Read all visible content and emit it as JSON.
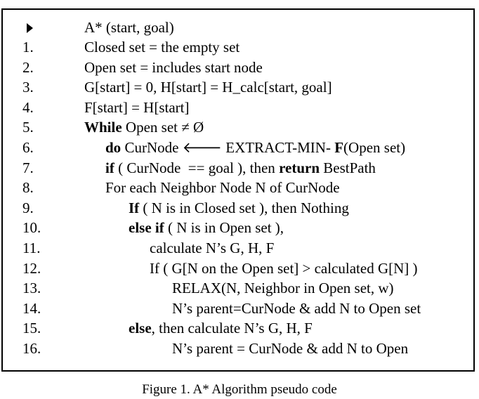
{
  "algorithm": {
    "header": "A* (start, goal)",
    "lines": [
      {
        "num": "1.",
        "parts": [
          {
            "text": "Closed set = the empty set"
          }
        ]
      },
      {
        "num": "2.",
        "parts": [
          {
            "text": "Open set = includes start node"
          }
        ]
      },
      {
        "num": "3.",
        "parts": [
          {
            "text": "G[start] = 0, H[start] = H_calc[start, goal]"
          }
        ]
      },
      {
        "num": "4.",
        "parts": [
          {
            "text": "F[start] = H[start]"
          }
        ]
      },
      {
        "num": "5.",
        "parts": [
          {
            "text": "While",
            "bold": true
          },
          {
            "text": " Open set ≠ Ø"
          }
        ]
      },
      {
        "num": "6.",
        "parts": [
          {
            "text": "do",
            "bold": true
          },
          {
            "text": " CurNode 🡐 EXTRACT-MIN- "
          },
          {
            "text": "F",
            "bold": true
          },
          {
            "text": "(Open set)"
          }
        ]
      },
      {
        "num": "7.",
        "parts": [
          {
            "text": "if",
            "bold": true
          },
          {
            "text": " ( CurNode  == goal ), then "
          },
          {
            "text": "return",
            "bold": true
          },
          {
            "text": " BestPath"
          }
        ]
      },
      {
        "num": "8.",
        "parts": [
          {
            "text": "For each Neighbor Node N of CurNode"
          }
        ]
      },
      {
        "num": "9.",
        "parts": [
          {
            "text": "If",
            "bold": true
          },
          {
            "text": " ( N is in Closed set ), then Nothing"
          }
        ]
      },
      {
        "num": "10.",
        "parts": [
          {
            "text": "else if",
            "bold": true
          },
          {
            "text": " ( N is in Open set ),"
          }
        ]
      },
      {
        "num": "11.",
        "parts": [
          {
            "text": "calculate N’s G, H, F"
          }
        ]
      },
      {
        "num": "12.",
        "parts": [
          {
            "text": "If ( G[N on the Open set] > calculated G[N] )"
          }
        ]
      },
      {
        "num": "13.",
        "parts": [
          {
            "text": "RELAX(N, Neighbor in Open set, w)"
          }
        ]
      },
      {
        "num": "14.",
        "parts": [
          {
            "text": "N’s parent=CurNode & add N to Open set"
          }
        ]
      },
      {
        "num": "15.",
        "parts": [
          {
            "text": "else",
            "bold": true
          },
          {
            "text": ", then calculate N’s G, H, F"
          }
        ]
      },
      {
        "num": "16.",
        "parts": [
          {
            "text": "N’s parent = CurNode & add N to Open"
          }
        ]
      }
    ]
  },
  "caption": "Figure 1. A* Algorithm pseudo code"
}
